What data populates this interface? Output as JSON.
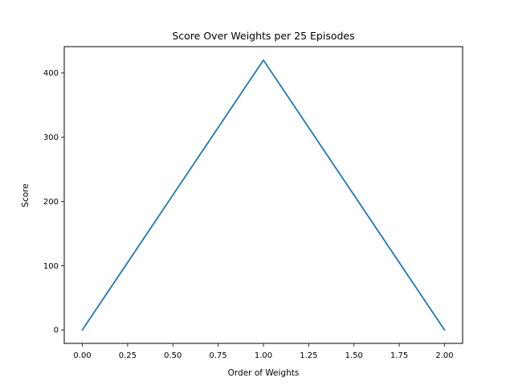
{
  "chart_data": {
    "type": "line",
    "title": "Score Over Weights per 25 Episodes",
    "xlabel": "Order of Weights",
    "ylabel": "Score",
    "xlim": [
      -0.1,
      2.1
    ],
    "ylim": [
      -21,
      441
    ],
    "grid": false,
    "x_ticks": [
      0.0,
      0.25,
      0.5,
      0.75,
      1.0,
      1.25,
      1.5,
      1.75,
      2.0
    ],
    "x_tick_labels": [
      "0.00",
      "0.25",
      "0.50",
      "0.75",
      "1.00",
      "1.25",
      "1.50",
      "1.75",
      "2.00"
    ],
    "y_ticks": [
      0,
      100,
      200,
      300,
      400
    ],
    "y_tick_labels": [
      "0",
      "100",
      "200",
      "300",
      "400"
    ],
    "series": [
      {
        "color": "#1f77b4",
        "x": [
          0,
          1,
          2
        ],
        "y": [
          0,
          420,
          0
        ]
      }
    ]
  }
}
